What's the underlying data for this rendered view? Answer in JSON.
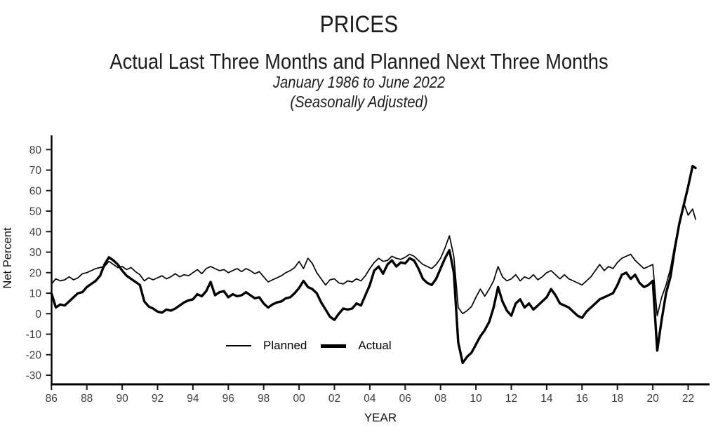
{
  "titles": {
    "main": "PRICES",
    "subtitle": "Actual Last Three Months and Planned Next Three Months",
    "date_range": "January 1986 to June 2022",
    "adjustment_note": "(Seasonally Adjusted)"
  },
  "legend": {
    "planned_label": "Planned",
    "actual_label": "Actual"
  },
  "chart_data": {
    "type": "line",
    "title": "PRICES — Actual Last Three Months and Planned Next Three Months",
    "xlabel": "YEAR",
    "ylabel": "Net Percent",
    "xlim": [
      1986,
      2023.3
    ],
    "ylim": [
      -34,
      87
    ],
    "grid": false,
    "legend_position": "inside-bottom-center",
    "x_tick_years": [
      1986,
      1988,
      1990,
      1992,
      1994,
      1996,
      1998,
      2000,
      2002,
      2004,
      2006,
      2008,
      2010,
      2012,
      2014,
      2016,
      2018,
      2020,
      2022
    ],
    "x_tick_labels": [
      "86",
      "88",
      "90",
      "92",
      "94",
      "96",
      "98",
      "00",
      "02",
      "04",
      "06",
      "08",
      "10",
      "12",
      "14",
      "16",
      "18",
      "20",
      "22"
    ],
    "y_ticks": [
      80,
      70,
      60,
      50,
      40,
      30,
      20,
      10,
      0,
      -10,
      -20,
      -30
    ],
    "x_start": 1986,
    "x_step": 0.25,
    "x_last": 2022.42,
    "series": [
      {
        "name": "Planned",
        "line_style": "thin",
        "stroke": "#000000",
        "values": [
          14.5,
          17,
          16,
          16.5,
          18,
          16.5,
          17.5,
          19.5,
          20,
          21,
          22,
          22.5,
          23,
          25.5,
          24,
          22.5,
          23,
          21.5,
          22.5,
          20.5,
          19,
          16,
          17.5,
          16.5,
          17.5,
          18.5,
          17,
          18,
          19.5,
          18,
          19,
          18.5,
          20,
          21.5,
          19.5,
          22,
          23,
          22,
          21,
          21.5,
          20,
          21,
          22,
          20.5,
          22,
          21,
          19.5,
          20.5,
          18,
          15.5,
          16.5,
          17.5,
          18.5,
          20,
          21,
          22.5,
          25.5,
          22,
          27,
          24.5,
          20,
          17,
          14,
          16.5,
          17,
          15,
          14.5,
          16,
          15.5,
          17,
          16,
          18.5,
          22,
          25,
          27,
          25.5,
          26,
          28,
          27,
          26.5,
          27.5,
          29,
          28,
          26,
          24,
          23,
          22,
          24,
          27,
          32,
          38,
          28,
          3,
          0,
          1.5,
          3.5,
          8,
          12,
          8.5,
          12,
          16,
          23,
          18,
          16,
          17,
          19,
          16,
          18,
          17,
          19,
          16.5,
          18,
          20,
          21,
          19,
          17,
          19,
          17,
          16,
          15,
          14,
          16,
          18,
          21,
          24,
          21,
          23,
          22,
          25,
          27,
          28,
          29,
          26,
          24,
          22,
          23,
          24,
          -1,
          8,
          14,
          22,
          34,
          43,
          54,
          48,
          51,
          46
        ]
      },
      {
        "name": "Actual",
        "line_style": "thick",
        "stroke": "#000000",
        "values": [
          10,
          3,
          4.5,
          4,
          6,
          8,
          10,
          10.5,
          13,
          14.5,
          16,
          18.5,
          24,
          27.5,
          26,
          24,
          21,
          18.5,
          17,
          15.5,
          14,
          6,
          3.5,
          2.5,
          1,
          0.5,
          2,
          1.5,
          2.5,
          4,
          5.5,
          6.5,
          7,
          9.5,
          8.5,
          11,
          15.5,
          9,
          10.5,
          11,
          8,
          9.5,
          8.5,
          9,
          10.5,
          9,
          7.5,
          8,
          5,
          3,
          4.5,
          5.5,
          6,
          7.5,
          8,
          10,
          12.5,
          16,
          13,
          12,
          10,
          5.5,
          2,
          -1.5,
          -3,
          0,
          2.5,
          2,
          2.5,
          5,
          4,
          9,
          14,
          21,
          23,
          19.5,
          24,
          26,
          23,
          25,
          24.5,
          27,
          26,
          22,
          17,
          15,
          14,
          17,
          22,
          27,
          31,
          20,
          -14,
          -24,
          -21,
          -19,
          -15,
          -11,
          -8,
          -4,
          3,
          13,
          6,
          1.5,
          -1,
          5,
          7,
          3,
          5,
          2,
          4,
          6,
          8,
          12,
          9,
          5,
          4,
          3,
          1,
          -1,
          -2,
          1,
          3,
          5,
          7,
          8,
          9,
          10,
          14,
          19,
          20,
          17,
          19,
          15,
          13,
          14,
          16,
          -18,
          -3,
          10,
          18,
          32,
          44,
          53,
          62,
          72,
          71
        ]
      }
    ],
    "colors": {
      "line": "#000000",
      "tick_label": "#3d3d3d",
      "axis": "#1a1a1a",
      "background": "#ffffff"
    }
  }
}
